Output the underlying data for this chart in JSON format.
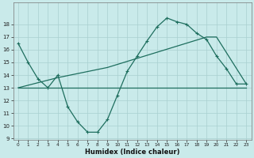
{
  "bg_color": "#c9eaea",
  "line_color": "#1e6e5e",
  "grid_color": "#a8d0d0",
  "xlabel": "Humidex (Indice chaleur)",
  "ylim": [
    9,
    19
  ],
  "xlim": [
    -0.5,
    23.5
  ],
  "yticks": [
    9,
    10,
    11,
    12,
    13,
    14,
    15,
    16,
    17,
    18
  ],
  "xticks": [
    0,
    1,
    2,
    3,
    4,
    5,
    6,
    7,
    8,
    9,
    10,
    11,
    12,
    13,
    14,
    15,
    16,
    17,
    18,
    19,
    20,
    21,
    22,
    23
  ],
  "series1_x": [
    0,
    1,
    2,
    3,
    4,
    5,
    6,
    7,
    8,
    9,
    10,
    11,
    12,
    13,
    14,
    15,
    16,
    17,
    18,
    19,
    20,
    21,
    22,
    23
  ],
  "series1_y": [
    16.5,
    15.0,
    13.7,
    13.0,
    14.0,
    11.5,
    10.3,
    9.5,
    9.5,
    10.5,
    12.4,
    14.3,
    15.5,
    16.7,
    17.8,
    18.5,
    18.2,
    18.0,
    17.3,
    16.8,
    15.5,
    14.5,
    13.3,
    13.3
  ],
  "series2_x": [
    0,
    10,
    22,
    23
  ],
  "series2_y": [
    13.0,
    13.0,
    13.0,
    13.0
  ],
  "series3_x": [
    0,
    4,
    9,
    14,
    19,
    20,
    23
  ],
  "series3_y": [
    13.0,
    13.8,
    14.6,
    15.8,
    17.0,
    17.0,
    13.3
  ]
}
